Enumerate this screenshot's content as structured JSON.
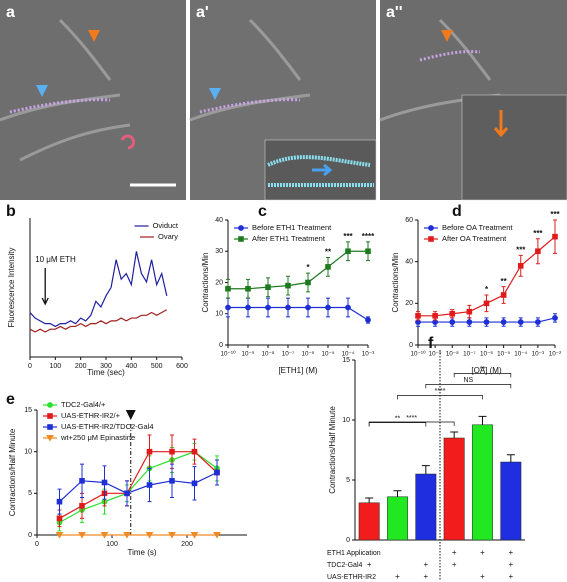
{
  "images": [
    {
      "label": "a"
    },
    {
      "label": "a'"
    },
    {
      "label": "a''"
    }
  ],
  "chart_data": [
    {
      "type": "line",
      "panel": "b",
      "xlabel": "Time (sec)",
      "ylabel": "Fluorescence Intensity",
      "xlim": [
        0,
        600
      ],
      "xticks": [
        0,
        100,
        200,
        300,
        400,
        500,
        600
      ],
      "ylim": [
        0,
        50
      ],
      "x": [
        0,
        20,
        40,
        60,
        80,
        100,
        120,
        140,
        160,
        180,
        200,
        220,
        240,
        260,
        280,
        300,
        320,
        340,
        360,
        380,
        400,
        420,
        440,
        460,
        480,
        500,
        520,
        540
      ],
      "legend": "upper right",
      "series": [
        {
          "name": "Oviduct",
          "color": "#1f1fa0",
          "values": [
            16,
            14,
            13,
            12,
            12,
            11,
            12,
            12,
            13,
            12,
            14,
            13,
            15,
            20,
            18,
            22,
            25,
            35,
            28,
            30,
            26,
            38,
            30,
            27,
            35,
            26,
            30,
            22
          ]
        },
        {
          "name": "Ovary",
          "color": "#a01f1f",
          "values": [
            10,
            9,
            10,
            9,
            10,
            10,
            11,
            10,
            11,
            11,
            12,
            11,
            12,
            12,
            13,
            12,
            13,
            13,
            14,
            13,
            14,
            14,
            15,
            15,
            16,
            15,
            16,
            17
          ]
        }
      ],
      "annotations": [
        {
          "text": "10 μM ETH",
          "x": 60
        }
      ]
    },
    {
      "type": "line",
      "panel": "c",
      "xlabel": "[ETH1] (M)",
      "ylabel": "Contractions/Min",
      "xscale": "log",
      "xlim": [
        1e-10,
        0.001
      ],
      "xticks": [
        {
          "value": 1e-10,
          "label": "10⁻¹⁰"
        },
        {
          "value": 1e-09,
          "label": "10⁻⁹"
        },
        {
          "value": 1e-08,
          "label": "10⁻⁸"
        },
        {
          "value": 1e-07,
          "label": "10⁻⁷"
        },
        {
          "value": 1e-06,
          "label": "10⁻⁶"
        },
        {
          "value": 1e-05,
          "label": "10⁻⁵"
        },
        {
          "value": 0.0001,
          "label": "10⁻⁴"
        },
        {
          "value": 0.001,
          "label": "10⁻³"
        }
      ],
      "ylim": [
        0,
        40
      ],
      "yticks": [
        0,
        10,
        20,
        30,
        40
      ],
      "legend": "upper left",
      "x": [
        1e-10,
        1e-09,
        1e-08,
        1e-07,
        1e-06,
        1e-05,
        0.0001,
        0.001
      ],
      "series": [
        {
          "name": "Before ETH1 Treatment",
          "color": "#1f2fd6",
          "marker": "circle",
          "values": [
            12,
            12,
            12,
            12,
            12,
            12,
            12,
            8
          ],
          "errors": [
            3,
            3,
            3,
            3,
            3,
            3,
            3,
            1
          ]
        },
        {
          "name": "After ETH1 Treatment",
          "color": "#1e7a1e",
          "marker": "square",
          "values": [
            18,
            18,
            18.5,
            19,
            20,
            25,
            30,
            30
          ],
          "errors": [
            3,
            3,
            3,
            3,
            3,
            3,
            3,
            3
          ]
        }
      ],
      "annotations": [
        {
          "text": "*",
          "x": 1e-06
        },
        {
          "text": "**",
          "x": 1e-05
        },
        {
          "text": "***",
          "x": 0.0001
        },
        {
          "text": "****",
          "x": 0.001
        }
      ]
    },
    {
      "type": "line",
      "panel": "d",
      "xlabel": "[OA] (M)",
      "ylabel": "Contractions/Min",
      "xscale": "log",
      "xlim": [
        1e-10,
        0.01
      ],
      "xticks": [
        {
          "value": 1e-10,
          "label": "10⁻¹⁰"
        },
        {
          "value": 1e-09,
          "label": "10⁻⁹"
        },
        {
          "value": 1e-08,
          "label": "10⁻⁸"
        },
        {
          "value": 1e-07,
          "label": "10⁻⁷"
        },
        {
          "value": 1e-06,
          "label": "10⁻⁶"
        },
        {
          "value": 1e-05,
          "label": "10⁻⁵"
        },
        {
          "value": 0.0001,
          "label": "10⁻⁴"
        },
        {
          "value": 0.001,
          "label": "10⁻³"
        },
        {
          "value": 0.01,
          "label": "10⁻²"
        }
      ],
      "ylim": [
        0,
        60
      ],
      "yticks": [
        0,
        20,
        40,
        60
      ],
      "legend": "upper left",
      "x": [
        1e-10,
        1e-09,
        1e-08,
        1e-07,
        1e-06,
        1e-05,
        0.0001,
        0.001,
        0.01
      ],
      "series": [
        {
          "name": "Before OA Treatment",
          "color": "#1f2fd6",
          "marker": "circle",
          "values": [
            11,
            11,
            11,
            11,
            11,
            11,
            11,
            11,
            13
          ],
          "errors": [
            2,
            2,
            2,
            2,
            2,
            2,
            2,
            2,
            2
          ]
        },
        {
          "name": "After OA Treatment",
          "color": "#e01b1b",
          "marker": "square",
          "values": [
            14,
            14,
            15,
            16,
            20,
            24,
            38,
            45,
            52
          ],
          "errors": [
            2,
            2,
            2,
            3,
            4,
            4,
            5,
            6,
            8
          ]
        }
      ],
      "annotations": [
        {
          "text": "*",
          "x": 1e-06
        },
        {
          "text": "**",
          "x": 1e-05
        },
        {
          "text": "***",
          "x": 0.0001
        },
        {
          "text": "***",
          "x": 0.001
        },
        {
          "text": "***",
          "x": 0.01
        }
      ]
    },
    {
      "type": "line",
      "panel": "e",
      "xlabel": "Time (s)",
      "ylabel": "Contractions/Half Minute",
      "xlim": [
        0,
        280
      ],
      "xticks": [
        0,
        100,
        200
      ],
      "ylim": [
        0,
        15
      ],
      "yticks": [
        0,
        5,
        10,
        15
      ],
      "legend": "upper left",
      "x": [
        30,
        60,
        90,
        120,
        150,
        180,
        210,
        240
      ],
      "event_x": 125,
      "series": [
        {
          "name": "TDC2-Gal4/+",
          "color": "#2ee02e",
          "marker": "circle",
          "values": [
            1.5,
            3,
            4,
            5,
            8,
            9,
            10,
            8
          ],
          "errors": [
            1,
            1.5,
            1.5,
            1,
            1.5,
            1.5,
            1,
            1.5
          ]
        },
        {
          "name": "UAS-ETHR-IR2/+",
          "color": "#e01b1b",
          "marker": "square",
          "values": [
            2,
            3.5,
            5,
            5,
            10,
            10,
            10,
            7.5
          ],
          "errors": [
            1,
            1.5,
            1.5,
            1.5,
            2,
            2,
            1.5,
            1.5
          ]
        },
        {
          "name": "UAS-ETHR-IR2/TDC2-Gal4",
          "color": "#1f2fd6",
          "marker": "square",
          "values": [
            4,
            6.5,
            6.3,
            5,
            6,
            6.5,
            6.2,
            7.5
          ],
          "errors": [
            1.5,
            2,
            2,
            1.5,
            2,
            2,
            2,
            1.5
          ]
        },
        {
          "name": "wt+250 μM Epinastine",
          "color": "#f08a24",
          "marker": "triangle-down",
          "values": [
            0,
            0,
            0,
            0,
            0,
            0,
            0,
            0
          ]
        }
      ]
    },
    {
      "type": "bar",
      "panel": "f",
      "ylabel": "Contractions/Half Minute",
      "ylim": [
        0,
        15
      ],
      "yticks": [
        0,
        5,
        10,
        15
      ],
      "values": [
        3.1,
        3.6,
        5.5,
        8.5,
        9.6,
        6.5
      ],
      "errors": [
        0.4,
        0.5,
        0.7,
        0.5,
        0.7,
        0.6
      ],
      "colors": [
        "#f21c1c",
        "#22e822",
        "#1f2fe0",
        "#f21c1c",
        "#22e822",
        "#1f2fe0"
      ],
      "comparisons": [
        {
          "bars": [
            0,
            3
          ],
          "label": "****"
        },
        {
          "bars": [
            1,
            4
          ],
          "label": "****"
        },
        {
          "bars": [
            2,
            5
          ],
          "label": "NS"
        },
        {
          "bars": [
            0,
            2
          ],
          "label": "**"
        },
        {
          "bars": [
            3,
            5
          ],
          "label": "**"
        }
      ],
      "table": [
        {
          "label": "ETH1 Application",
          "cells": [
            null,
            null,
            null,
            "+",
            "+",
            "+"
          ]
        },
        {
          "label": "TDC2-Gal4",
          "cells": [
            "+",
            null,
            "+",
            "+",
            null,
            "+"
          ]
        },
        {
          "label": "UAS-ETHR-IR2",
          "cells": [
            null,
            "+",
            "+",
            null,
            "+",
            "+"
          ]
        }
      ]
    }
  ]
}
